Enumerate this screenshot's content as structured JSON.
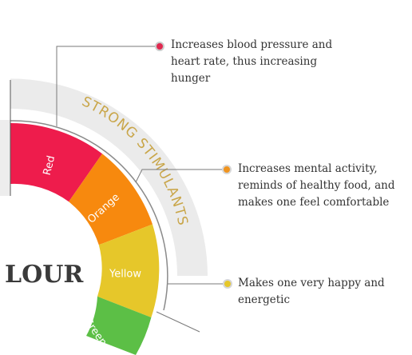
{
  "center_label": "LOUR",
  "arc_label": "STRONG STIMULANTS",
  "segments": [
    {
      "label": "Red",
      "color": "#ee1c4c"
    },
    {
      "label": "Orange",
      "color": "#f7890e"
    },
    {
      "label": "Yellow",
      "color": "#e6c72a"
    },
    {
      "label": "Green",
      "color": "#5cbf46"
    }
  ],
  "annotations": [
    {
      "lines": [
        "Increases blood pressure and",
        "heart rate, thus increasing",
        "hunger"
      ],
      "dot_color": "#e0294f"
    },
    {
      "lines": [
        "Increases mental activity,",
        "reminds of healthy food, and",
        "makes one feel comfortable"
      ],
      "dot_color": "#f0941f"
    },
    {
      "lines": [
        "Makes one very happy and",
        "energetic"
      ],
      "dot_color": "#e6c72a"
    }
  ],
  "colors": {
    "band": "#ebebeb",
    "arc_text": "#c9a64a",
    "connector": "#7a7a7a"
  }
}
